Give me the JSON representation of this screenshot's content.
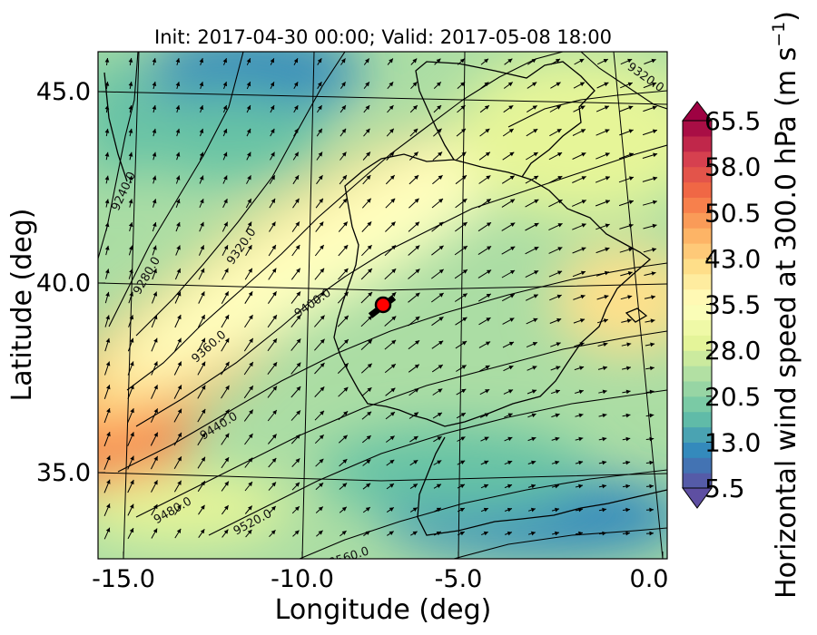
{
  "chart_data": {
    "type": "heatmap",
    "title": "Init: 2017-04-30 00:00; Valid: 2017-05-08 18:00",
    "xlabel": "Longitude (deg)",
    "ylabel": "Latitude (deg)",
    "xlim": [
      -15.8,
      0.3
    ],
    "ylim": [
      32.8,
      46.1
    ],
    "x_ticks": [
      "-15.0",
      "-10.0",
      "-5.0",
      "0.0"
    ],
    "y_ticks": [
      "35.0",
      "40.0",
      "45.0"
    ],
    "colorbar": {
      "label": "Horizontal wind speed at 300.0 hPa (m s",
      "label_superscript": "−1",
      "label_suffix": ")",
      "range": [
        5.5,
        65.5
      ],
      "extend": "both",
      "ticks": [
        "5.5",
        "13.0",
        "20.5",
        "28.0",
        "35.5",
        "43.0",
        "50.5",
        "58.0",
        "65.5"
      ],
      "colormap": [
        "#5e4fa2",
        "#3288bd",
        "#66c2a5",
        "#abdda4",
        "#e6f598",
        "#ffffbf",
        "#fee08b",
        "#fdae61",
        "#f46d43",
        "#d53e4f",
        "#9e0142"
      ]
    },
    "contour_field": "geopotential height",
    "contour_labels": [
      "9240.0",
      "9280.0",
      "9320.0",
      "9360.0",
      "9400.0",
      "9440.0",
      "9480.0",
      "9520.0",
      "9560.0",
      "9320.0"
    ],
    "grid": true,
    "marker": {
      "lon": -7.6,
      "lat": 39.3,
      "color": "#ff0000"
    }
  }
}
